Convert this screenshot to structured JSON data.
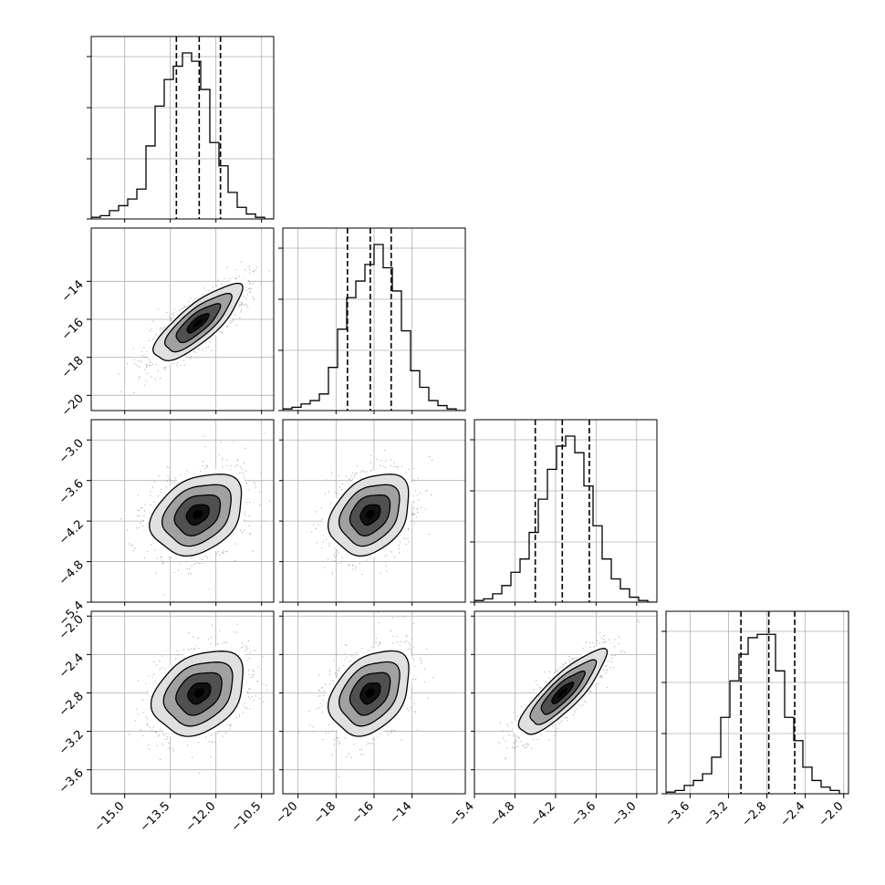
{
  "chart_data": {
    "type": "corner",
    "title": "",
    "parameters": [
      {
        "range": [
          -16.1,
          -10.1
        ],
        "ticks": [
          -15.0,
          -13.5,
          -12.0,
          -10.5
        ],
        "tick_labels": [
          "−15.0",
          "−13.5",
          "−12.0",
          "−10.5"
        ],
        "quantiles": [
          -13.3,
          -12.55,
          -11.85
        ],
        "hist_counts": [
          0.01,
          0.02,
          0.05,
          0.08,
          0.12,
          0.18,
          0.44,
          0.68,
          0.84,
          0.92,
          1.0,
          0.95,
          0.78,
          0.46,
          0.32,
          0.16,
          0.07,
          0.03,
          0.01,
          0.0
        ]
      },
      {
        "range": [
          -20.8,
          -11.2
        ],
        "ticks": [
          -20,
          -18,
          -16,
          -14
        ],
        "tick_labels": [
          "−20",
          "−18",
          "−16",
          "−14"
        ],
        "quantiles": [
          -17.4,
          -16.2,
          -15.1
        ],
        "hist_counts": [
          0.01,
          0.02,
          0.04,
          0.06,
          0.1,
          0.26,
          0.49,
          0.68,
          0.78,
          0.88,
          1.0,
          0.86,
          0.72,
          0.48,
          0.24,
          0.14,
          0.06,
          0.03,
          0.01,
          0.0
        ]
      },
      {
        "range": [
          -5.4,
          -2.7
        ],
        "ticks": [
          -5.4,
          -4.8,
          -4.2,
          -3.6,
          -3.0
        ],
        "tick_labels": [
          "−5.4",
          "−4.8",
          "−4.2",
          "−3.6",
          "−3.0"
        ],
        "quantiles": [
          -4.5,
          -4.1,
          -3.7
        ],
        "hist_counts": [
          0.01,
          0.02,
          0.05,
          0.1,
          0.18,
          0.26,
          0.42,
          0.62,
          0.8,
          0.94,
          1.0,
          0.9,
          0.7,
          0.46,
          0.26,
          0.14,
          0.08,
          0.03,
          0.01,
          0.0
        ]
      },
      {
        "range": [
          -3.85,
          -1.95
        ],
        "ticks": [
          -3.6,
          -3.2,
          -2.8,
          -2.4,
          -2.0
        ],
        "tick_labels": [
          "−3.6",
          "−3.2",
          "−2.8",
          "−2.4",
          "−2.0"
        ],
        "quantiles": [
          -3.07,
          -2.78,
          -2.51
        ],
        "hist_counts": [
          0.01,
          0.02,
          0.05,
          0.08,
          0.12,
          0.22,
          0.46,
          0.68,
          0.84,
          0.94,
          0.96,
          0.96,
          0.74,
          0.46,
          0.32,
          0.16,
          0.08,
          0.04,
          0.02,
          0.0
        ]
      }
    ],
    "pairs": [
      {
        "x": 0,
        "y": 1,
        "mean": [
          -12.6,
          -16.2
        ],
        "sd": [
          0.72,
          1.0
        ],
        "rho": 0.8
      },
      {
        "x": 0,
        "y": 2,
        "mean": [
          -12.6,
          -4.1
        ],
        "sd": [
          0.75,
          0.3
        ],
        "rho": 0.3
      },
      {
        "x": 1,
        "y": 2,
        "mean": [
          -16.2,
          -4.1
        ],
        "sd": [
          1.05,
          0.3
        ],
        "rho": 0.3
      },
      {
        "x": 0,
        "y": 3,
        "mean": [
          -12.55,
          -2.8
        ],
        "sd": [
          0.75,
          0.22
        ],
        "rho": 0.3
      },
      {
        "x": 1,
        "y": 3,
        "mean": [
          -16.2,
          -2.8
        ],
        "sd": [
          1.05,
          0.22
        ],
        "rho": 0.35
      },
      {
        "x": 2,
        "y": 3,
        "mean": [
          -4.1,
          -2.8
        ],
        "sd": [
          0.32,
          0.22
        ],
        "rho": 0.85
      }
    ],
    "contour_levels_sigma": [
      0.5,
      1.0,
      1.5,
      2.0
    ],
    "grid": true,
    "colors": {
      "hist": "#000000",
      "contour": "#000000",
      "scatter": "#9e9e9e",
      "grid": "#b0b0b0",
      "density": "#000000"
    }
  }
}
